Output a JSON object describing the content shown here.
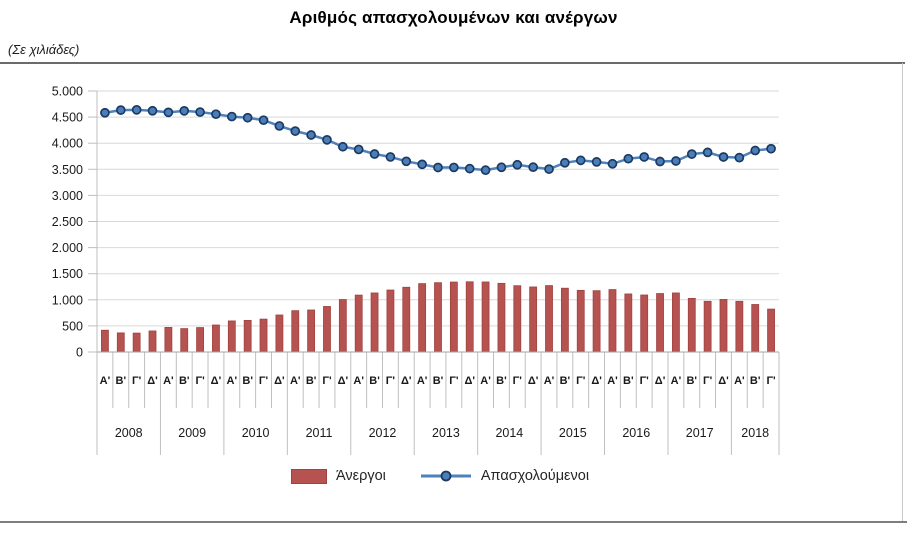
{
  "page": {
    "title": "Αριθμός απασχολουμένων και ανέργων",
    "subtitle": "(Σε χιλιάδες)"
  },
  "colors": {
    "bar_fill": "#B65351",
    "bar_stroke": "#9E4341",
    "line": "#4F81BD",
    "marker_fill": "#4A7EBB",
    "marker_stroke": "#1C3A5F",
    "grid": "#D9D9D9",
    "axis": "#BFBFBF",
    "baseline": "#A6A6A6",
    "label_text": "#1a1a1a"
  },
  "chart_data": {
    "type": "bar+line combo",
    "title": "Αριθμός απασχολουμένων και ανέργων",
    "units_note": "(Σε χιλιάδες)",
    "quarter_names": [
      "Α'",
      "Β'",
      "Γ'",
      "Δ'"
    ],
    "years": [
      "2008",
      "2009",
      "2010",
      "2011",
      "2012",
      "2013",
      "2014",
      "2015",
      "2016",
      "2017",
      "2018"
    ],
    "quarters_per_year": [
      4,
      4,
      4,
      4,
      4,
      4,
      4,
      4,
      4,
      4,
      3
    ],
    "y_ticks": [
      "5.000",
      "4.500",
      "4.000",
      "3.500",
      "3.000",
      "2.500",
      "2.000",
      "1.500",
      "1.000",
      "500",
      "0"
    ],
    "ylim": [
      0,
      5000
    ],
    "grid": true,
    "legend_position": "bottom",
    "series": [
      {
        "name": "Άνεργοι",
        "type": "bar",
        "color": "#B65351",
        "values": [
          417,
          366,
          362,
          403,
          471,
          448,
          468,
          517,
          595,
          605,
          630,
          709,
          792,
          805,
          872,
          1005,
          1090,
          1131,
          1187,
          1240,
          1310,
          1328,
          1340,
          1345,
          1342,
          1315,
          1270,
          1246,
          1272,
          1222,
          1181,
          1175,
          1196,
          1112,
          1092,
          1120,
          1131,
          1027,
          971,
          1007,
          971,
          910,
          822
        ]
      },
      {
        "name": "Απασχολούμενοι",
        "type": "line",
        "color": "#4F81BD",
        "values": [
          4583,
          4634,
          4639,
          4621,
          4591,
          4620,
          4597,
          4556,
          4510,
          4488,
          4441,
          4331,
          4232,
          4157,
          4064,
          3932,
          3880,
          3793,
          3737,
          3653,
          3595,
          3535,
          3536,
          3513,
          3484,
          3539,
          3587,
          3541,
          3504,
          3625,
          3671,
          3642,
          3606,
          3703,
          3736,
          3649,
          3659,
          3791,
          3824,
          3736,
          3723,
          3860,
          3894
        ]
      }
    ]
  }
}
